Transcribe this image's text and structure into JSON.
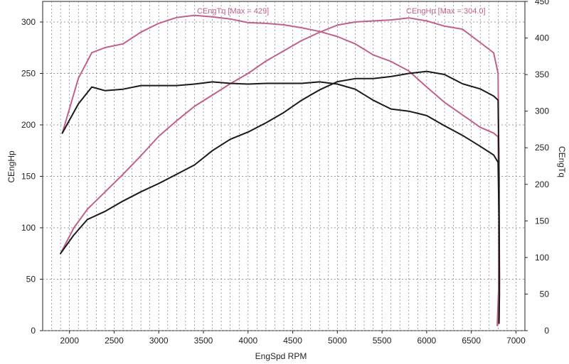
{
  "chart_data": {
    "type": "line",
    "xlabel": "EngSpd RPM",
    "ylabel_left": "CEngHp",
    "ylabel_right": "CEngTq",
    "xlim": [
      1700,
      7100
    ],
    "ylim_left": [
      0,
      320
    ],
    "ylim_right": [
      0,
      450
    ],
    "x_ticks": [
      2000,
      2500,
      3000,
      3500,
      4000,
      4500,
      5000,
      5500,
      6000,
      6500,
      7000
    ],
    "y_left_ticks": [
      0,
      50,
      100,
      150,
      200,
      250,
      300
    ],
    "y_right_ticks": [
      0,
      50,
      100,
      150,
      200,
      250,
      300,
      350,
      400,
      450
    ],
    "grid": true,
    "legend": [
      {
        "text": "CEngTq [Max = 429]",
        "color": "#c0608c"
      },
      {
        "text": "CEngHp [Max = 304.0]",
        "color": "#c0608c"
      }
    ],
    "series": [
      {
        "axis": "right",
        "color": "#c0608c",
        "x": [
          1920,
          2100,
          2250,
          2400,
          2600,
          2800,
          3000,
          3200,
          3400,
          3600,
          3800,
          4000,
          4200,
          4400,
          4600,
          4800,
          5000,
          5200,
          5400,
          5600,
          5800,
          6000,
          6200,
          6400,
          6600,
          6750,
          6800,
          6810,
          6810,
          6800
        ],
        "y": [
          270,
          345,
          380,
          387,
          392,
          408,
          420,
          428,
          431,
          429,
          426,
          421,
          420,
          418,
          414,
          409,
          402,
          392,
          377,
          368,
          355,
          333,
          312,
          295,
          278,
          270,
          265,
          150,
          40,
          10
        ]
      },
      {
        "axis": "left",
        "color": "#c0608c",
        "x": [
          1900,
          2050,
          2200,
          2400,
          2600,
          2800,
          3000,
          3200,
          3400,
          3600,
          3800,
          4000,
          4200,
          4400,
          4600,
          4800,
          5000,
          5200,
          5400,
          5600,
          5800,
          6000,
          6200,
          6400,
          6600,
          6750,
          6800,
          6810,
          6805,
          6790
        ],
        "y": [
          75,
          100,
          118,
          135,
          152,
          170,
          189,
          204,
          218,
          229,
          240,
          250,
          262,
          272,
          282,
          290,
          297,
          300,
          301,
          302,
          304,
          301,
          296,
          293,
          280,
          270,
          250,
          150,
          40,
          5
        ]
      },
      {
        "axis": "right",
        "color": "#1a1a1a",
        "x": [
          1920,
          2100,
          2250,
          2400,
          2600,
          2800,
          3000,
          3200,
          3400,
          3600,
          3800,
          4000,
          4200,
          4400,
          4600,
          4800,
          5000,
          5200,
          5400,
          5600,
          5800,
          6000,
          6200,
          6400,
          6600,
          6750,
          6800,
          6810,
          6815,
          6810
        ],
        "y": [
          270,
          310,
          333,
          328,
          330,
          335,
          335,
          335,
          337,
          340,
          338,
          337,
          338,
          338,
          338,
          340,
          337,
          330,
          315,
          303,
          300,
          294,
          280,
          267,
          252,
          240,
          230,
          150,
          50,
          10
        ]
      },
      {
        "axis": "left",
        "color": "#1a1a1a",
        "x": [
          1900,
          2050,
          2200,
          2400,
          2600,
          2800,
          3000,
          3200,
          3400,
          3600,
          3800,
          4000,
          4200,
          4400,
          4600,
          4800,
          5000,
          5200,
          5400,
          5600,
          5800,
          6000,
          6200,
          6400,
          6600,
          6750,
          6800,
          6810,
          6815,
          6810
        ],
        "y": [
          75,
          93,
          108,
          116,
          126,
          135,
          143,
          152,
          161,
          175,
          186,
          193,
          202,
          212,
          224,
          234,
          242,
          245,
          245,
          247,
          250,
          252,
          249,
          240,
          235,
          228,
          224,
          150,
          50,
          10
        ]
      }
    ]
  }
}
